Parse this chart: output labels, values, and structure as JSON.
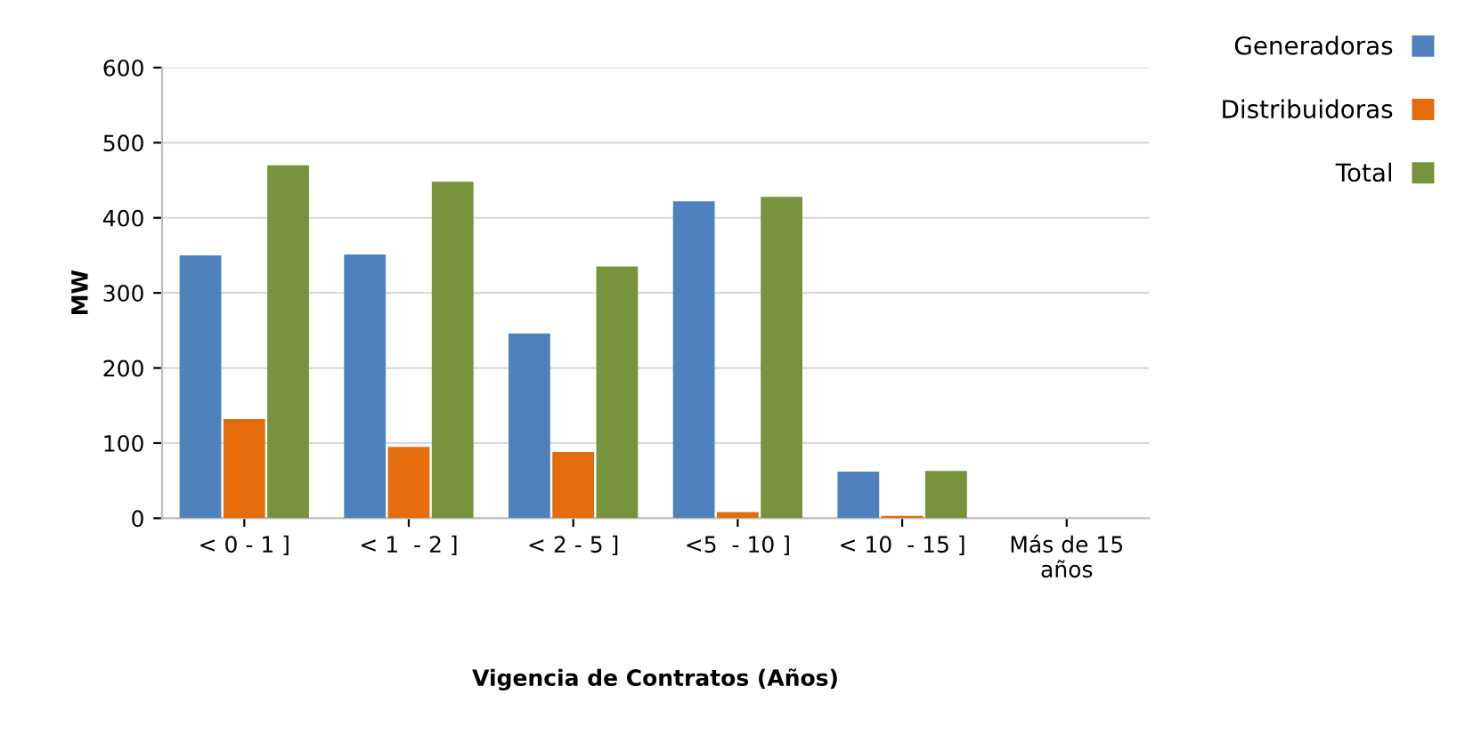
{
  "chart_data": {
    "type": "bar",
    "xlabel": "Vigencia de Contratos (Años)",
    "ylabel": "MW",
    "categories": [
      "< 0 - 1 ]",
      "< 1  - 2 ]",
      "< 2 - 5 ]",
      "<5  - 10 ]",
      "< 10  - 15 ]",
      "Más de 15\naños"
    ],
    "series": [
      {
        "name": "Generadoras",
        "color": "#4f81bd",
        "values": [
          350,
          351,
          246,
          422,
          62,
          0
        ]
      },
      {
        "name": "Distribuidoras",
        "color": "#e46c0a",
        "values": [
          132,
          95,
          88,
          8,
          3,
          0
        ]
      },
      {
        "name": "Total",
        "color": "#77933c",
        "values": [
          470,
          448,
          335,
          428,
          63,
          0
        ]
      }
    ],
    "ylim": [
      0,
      600
    ],
    "yticks": [
      0,
      100,
      200,
      300,
      400,
      500,
      600
    ],
    "grid": "y",
    "legend": "top right"
  }
}
